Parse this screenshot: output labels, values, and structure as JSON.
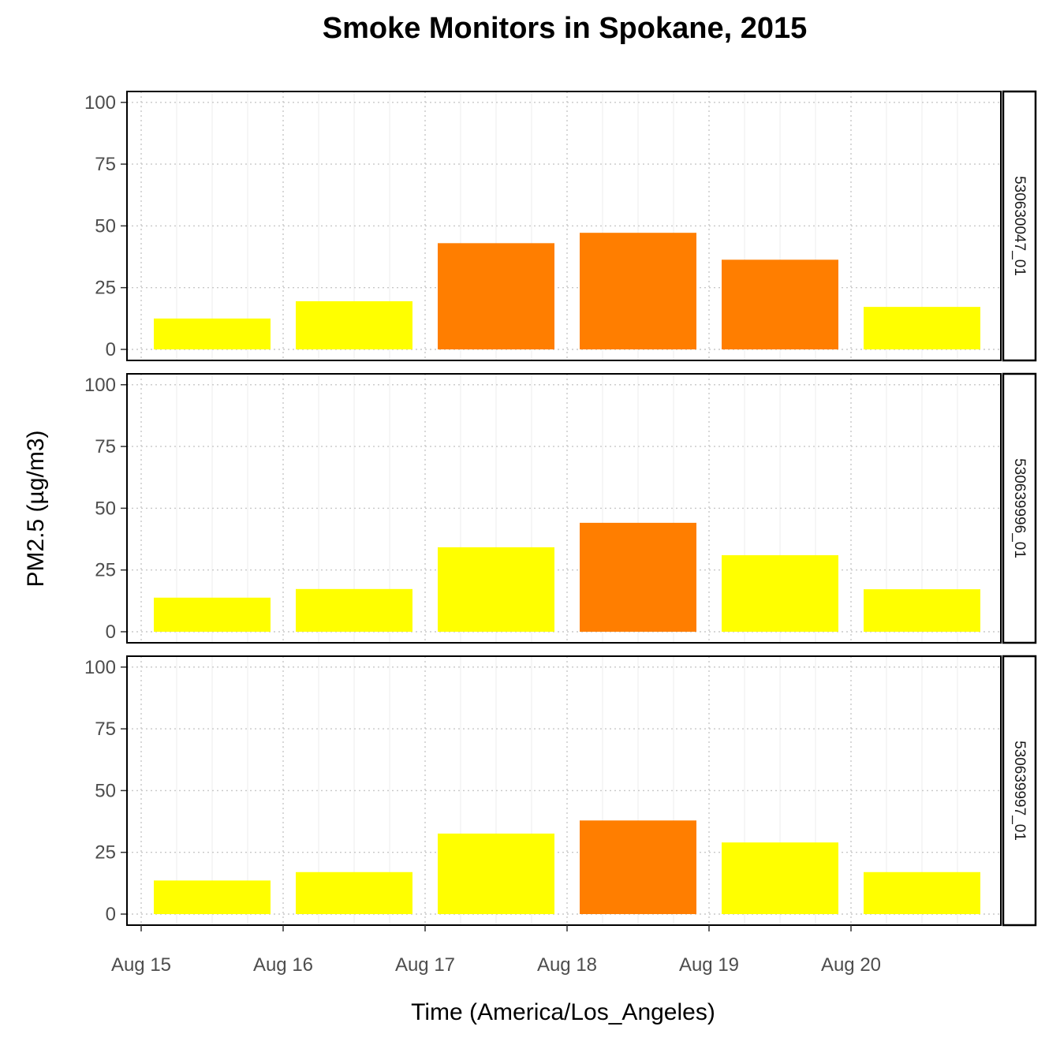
{
  "chart_data": {
    "type": "bar",
    "title": "Smoke Monitors in Spokane, 2015",
    "xlabel": "Time (America/Los_Angeles)",
    "ylabel": "PM2.5 (µg/m3)",
    "ylim": [
      0,
      100
    ],
    "y_ticks": [
      0,
      25,
      50,
      75,
      100
    ],
    "x_tick_labels": [
      "Aug 15",
      "Aug 16",
      "Aug 17",
      "Aug 18",
      "Aug 19",
      "Aug 20"
    ],
    "categories": [
      "Aug 15",
      "Aug 16",
      "Aug 17",
      "Aug 18",
      "Aug 19",
      "Aug 20"
    ],
    "grid": true,
    "colors": {
      "low": "#ffff00",
      "high": "#ff7e00",
      "threshold": 35.5
    },
    "panels": [
      {
        "name": "530630047_01",
        "values": [
          12.5,
          19.5,
          43,
          47.2,
          36.3,
          17.2
        ]
      },
      {
        "name": "530639996_01",
        "values": [
          13.8,
          17.3,
          34.2,
          44.1,
          31,
          17.2
        ]
      },
      {
        "name": "530639997_01",
        "values": [
          13.6,
          17,
          32.6,
          37.9,
          29,
          17
        ]
      }
    ]
  }
}
